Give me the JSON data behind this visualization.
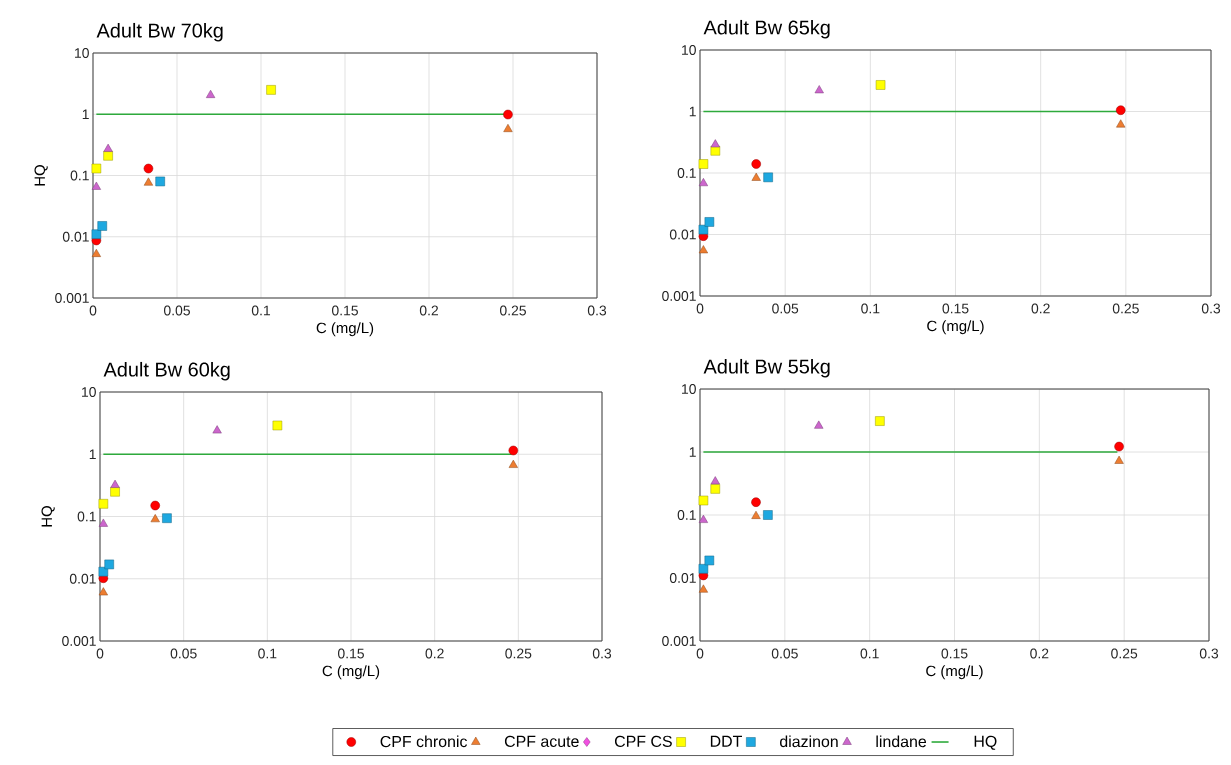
{
  "chart_data": [
    {
      "type": "scatter",
      "title": "Adult Bw 70kg",
      "xlabel": "C (mg/L)",
      "ylabel": "HQ",
      "log": "y",
      "grid": true,
      "xlim": [
        0,
        0.3
      ],
      "ylim": [
        0.001,
        10
      ],
      "xticks": [
        0,
        0.05,
        0.1,
        0.15,
        0.2,
        0.25,
        0.3
      ],
      "yticks": [
        0.001,
        0.01,
        0.1,
        1,
        10
      ],
      "series": [
        {
          "color": "#ff0000",
          "marker": "circle",
          "x": [
            0.002,
            0.033,
            0.247
          ],
          "values": [
            0.0087,
            0.13,
            0.99
          ]
        },
        {
          "color": "#ed7d31",
          "marker": "triangle",
          "x": [
            0.002,
            0.033,
            0.247
          ],
          "values": [
            0.0052,
            0.076,
            0.57
          ]
        },
        {
          "color": "#ffff00",
          "marker": "square",
          "x": [
            0.002,
            0.009,
            0.106
          ],
          "values": [
            0.13,
            0.21,
            2.5
          ]
        },
        {
          "color": "#1ea8e0",
          "marker": "square",
          "x": [
            0.002,
            0.0055,
            0.04
          ],
          "values": [
            0.011,
            0.015,
            0.08
          ]
        },
        {
          "color": "#cc66cc",
          "marker": "triangle",
          "x": [
            0.002,
            0.009,
            0.07
          ],
          "values": [
            0.065,
            0.27,
            2.05
          ]
        },
        {
          "type": "line",
          "color": "#2eaa3c",
          "marker": "none",
          "line_style": "solid",
          "x": [
            0.002,
            0.246
          ],
          "values": [
            1,
            1
          ]
        }
      ]
    },
    {
      "type": "scatter",
      "title": "Adult Bw 65kg",
      "xlabel": "C (mg/L)",
      "log": "y",
      "grid": true,
      "xlim": [
        0,
        0.3
      ],
      "ylim": [
        0.001,
        10
      ],
      "xticks": [
        0,
        0.05,
        0.1,
        0.15,
        0.2,
        0.25,
        0.3
      ],
      "yticks": [
        0.001,
        0.01,
        0.1,
        1,
        10
      ],
      "series": [
        {
          "color": "#ff0000",
          "marker": "circle",
          "x": [
            0.002,
            0.033,
            0.247
          ],
          "values": [
            0.0094,
            0.14,
            1.05
          ]
        },
        {
          "color": "#ed7d31",
          "marker": "triangle",
          "x": [
            0.002,
            0.033,
            0.247
          ],
          "values": [
            0.0055,
            0.083,
            0.61
          ]
        },
        {
          "color": "#ffff00",
          "marker": "square",
          "x": [
            0.002,
            0.009,
            0.106
          ],
          "values": [
            0.14,
            0.23,
            2.7
          ]
        },
        {
          "color": "#1ea8e0",
          "marker": "square",
          "x": [
            0.002,
            0.0055,
            0.04
          ],
          "values": [
            0.012,
            0.016,
            0.085
          ]
        },
        {
          "color": "#cc66cc",
          "marker": "triangle",
          "x": [
            0.002,
            0.009,
            0.07
          ],
          "values": [
            0.068,
            0.29,
            2.2
          ]
        },
        {
          "type": "line",
          "color": "#2eaa3c",
          "marker": "none",
          "line_style": "solid",
          "x": [
            0.002,
            0.246
          ],
          "values": [
            1,
            1
          ]
        }
      ]
    },
    {
      "type": "scatter",
      "title": "Adult Bw 60kg",
      "xlabel": "C (mg/L)",
      "ylabel": "HQ",
      "log": "y",
      "grid": true,
      "xlim": [
        0,
        0.3
      ],
      "ylim": [
        0.001,
        10
      ],
      "xticks": [
        0,
        0.05,
        0.1,
        0.15,
        0.2,
        0.25,
        0.3
      ],
      "yticks": [
        0.001,
        0.01,
        0.1,
        1,
        10
      ],
      "series": [
        {
          "color": "#ff0000",
          "marker": "circle",
          "x": [
            0.002,
            0.033,
            0.247
          ],
          "values": [
            0.0102,
            0.15,
            1.15
          ]
        },
        {
          "color": "#ed7d31",
          "marker": "triangle",
          "x": [
            0.002,
            0.033,
            0.247
          ],
          "values": [
            0.006,
            0.09,
            0.67
          ]
        },
        {
          "color": "#ffff00",
          "marker": "square",
          "x": [
            0.002,
            0.009,
            0.106
          ],
          "values": [
            0.16,
            0.25,
            2.9
          ]
        },
        {
          "color": "#1ea8e0",
          "marker": "square",
          "x": [
            0.002,
            0.0055,
            0.04
          ],
          "values": [
            0.013,
            0.017,
            0.094
          ]
        },
        {
          "color": "#cc66cc",
          "marker": "triangle",
          "x": [
            0.002,
            0.009,
            0.07
          ],
          "values": [
            0.076,
            0.32,
            2.4
          ]
        },
        {
          "type": "line",
          "color": "#2eaa3c",
          "marker": "none",
          "line_style": "solid",
          "x": [
            0.002,
            0.246
          ],
          "values": [
            1,
            1
          ]
        }
      ]
    },
    {
      "type": "scatter",
      "title": "Adult Bw 55kg",
      "xlabel": "C (mg/L)",
      "log": "y",
      "grid": true,
      "legend": "bottom",
      "xlim": [
        0,
        0.3
      ],
      "ylim": [
        0.001,
        10
      ],
      "xticks": [
        0,
        0.05,
        0.1,
        0.15,
        0.2,
        0.25,
        0.3
      ],
      "yticks": [
        0.001,
        0.01,
        0.1,
        1,
        10
      ],
      "series": [
        {
          "name": "CPF chronic",
          "color": "#ff0000",
          "marker": "circle",
          "x": [
            0.002,
            0.033,
            0.247
          ],
          "values": [
            0.011,
            0.16,
            1.22
          ]
        },
        {
          "name": "CPF acute",
          "color": "#ed7d31",
          "marker": "triangle",
          "x": [
            0.002,
            0.033,
            0.247
          ],
          "values": [
            0.0065,
            0.096,
            0.72
          ]
        },
        {
          "name": "CPF CS",
          "color": "#f050e0",
          "marker": "diamond"
        },
        {
          "name": "DDT",
          "color": "#ffff00",
          "marker": "square",
          "x": [
            0.002,
            0.009,
            0.106
          ],
          "values": [
            0.17,
            0.26,
            3.1
          ]
        },
        {
          "name": "diazinon",
          "color": "#1ea8e0",
          "marker": "square",
          "x": [
            0.002,
            0.0055,
            0.04
          ],
          "values": [
            0.014,
            0.019,
            0.1
          ]
        },
        {
          "name": "lindane",
          "color": "#cc66cc",
          "marker": "triangle",
          "x": [
            0.002,
            0.009,
            0.07
          ],
          "values": [
            0.083,
            0.34,
            2.6
          ]
        },
        {
          "name": "HQ",
          "type": "line",
          "color": "#2eaa3c",
          "marker": "none",
          "line_style": "solid",
          "x": [
            0.002,
            0.246
          ],
          "values": [
            1,
            1
          ]
        }
      ]
    }
  ]
}
